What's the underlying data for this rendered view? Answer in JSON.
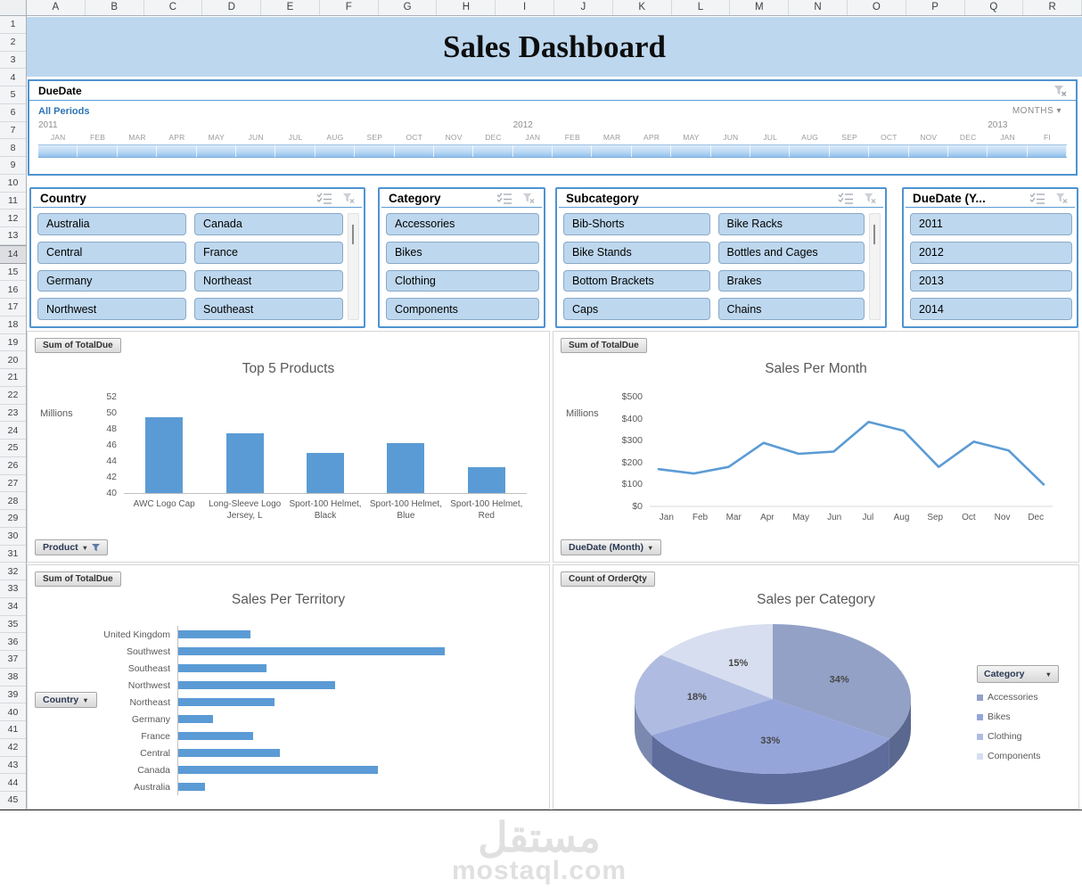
{
  "title": "Sales Dashboard",
  "spreadsheet": {
    "columns": [
      "A",
      "B",
      "C",
      "D",
      "E",
      "F",
      "G",
      "H",
      "I",
      "J",
      "K",
      "L",
      "M",
      "N",
      "O",
      "P",
      "Q",
      "R"
    ],
    "rows": [
      1,
      2,
      3,
      4,
      5,
      6,
      7,
      8,
      9,
      10,
      11,
      12,
      13,
      14,
      15,
      16,
      17,
      18,
      19,
      20,
      21,
      22,
      23,
      24,
      25,
      26,
      27,
      28,
      29,
      30,
      31,
      32,
      33,
      34,
      35,
      36,
      37,
      38,
      39,
      40,
      41,
      42,
      43,
      44,
      45
    ],
    "active_row": "14"
  },
  "icons": {
    "dropdown_small": "▾",
    "dropdown_filled": "▼"
  },
  "timeline": {
    "title": "DueDate",
    "selection_label": "All Periods",
    "period_button": "MONTHS",
    "years": [
      {
        "label": "2011",
        "month_index": 0
      },
      {
        "label": "2012",
        "month_index": 12
      },
      {
        "label": "2013",
        "month_index": 24
      }
    ],
    "months": [
      "JAN",
      "FEB",
      "MAR",
      "APR",
      "MAY",
      "JUN",
      "JUL",
      "AUG",
      "SEP",
      "OCT",
      "NOV",
      "DEC",
      "JAN",
      "FEB",
      "MAR",
      "APR",
      "MAY",
      "JUN",
      "JUL",
      "AUG",
      "SEP",
      "OCT",
      "NOV",
      "DEC",
      "JAN",
      "FI"
    ]
  },
  "slicers": [
    {
      "title": "Country",
      "columns": 2,
      "has_scrollbar": true,
      "items": [
        "Australia",
        "Canada",
        "Central",
        "France",
        "Germany",
        "Northeast",
        "Northwest",
        "Southeast"
      ]
    },
    {
      "title": "Category",
      "columns": 1,
      "has_scrollbar": false,
      "items": [
        "Accessories",
        "Bikes",
        "Clothing",
        "Components"
      ]
    },
    {
      "title": "Subcategory",
      "columns": 2,
      "has_scrollbar": true,
      "items": [
        "Bib-Shorts",
        "Bike Racks",
        "Bike Stands",
        "Bottles and Cages",
        "Bottom Brackets",
        "Brakes",
        "Caps",
        "Chains"
      ]
    },
    {
      "title": "DueDate (Y...",
      "columns": 1,
      "has_scrollbar": false,
      "items": [
        "2011",
        "2012",
        "2013",
        "2014"
      ]
    }
  ],
  "charts": {
    "top5": {
      "field_button": "Sum of TotalDue",
      "title": "Top 5 Products",
      "axis_label": "Millions",
      "filter_button": "Product"
    },
    "per_month": {
      "field_button": "Sum of TotalDue",
      "title": "Sales Per Month",
      "axis_label": "Millions",
      "filter_button": "DueDate (Month)"
    },
    "territory": {
      "field_button": "Sum of TotalDue",
      "title": "Sales Per Territory",
      "filter_button": "Country"
    },
    "per_category": {
      "field_button": "Count of OrderQty",
      "title": "Sales per Category",
      "legend_button": "Category"
    }
  },
  "chart_data": [
    {
      "id": "top5",
      "type": "bar",
      "title": "Top 5 Products",
      "categories": [
        "AWC Logo Cap",
        "Long-Sleeve Logo Jersey, L",
        "Sport-100 Helmet, Black",
        "Sport-100 Helmet, Blue",
        "Sport-100 Helmet, Red"
      ],
      "values": [
        49.5,
        47.5,
        45.0,
        46.2,
        43.2
      ],
      "ylabel": "Millions",
      "y_ticks": [
        52,
        50,
        48,
        46,
        44,
        42,
        40
      ],
      "ylim": [
        40,
        52
      ],
      "grid": false,
      "bar_color": "#5b9bd5"
    },
    {
      "id": "per_month",
      "type": "line",
      "title": "Sales Per Month",
      "x": [
        "Jan",
        "Feb",
        "Mar",
        "Apr",
        "May",
        "Jun",
        "Jul",
        "Aug",
        "Sep",
        "Oct",
        "Nov",
        "Dec"
      ],
      "values": [
        170,
        150,
        180,
        290,
        240,
        250,
        385,
        345,
        180,
        295,
        255,
        100
      ],
      "ylabel": "Millions",
      "y_ticks": [
        "$500",
        "$400",
        "$300",
        "$200",
        "$100",
        "$0"
      ],
      "ylim": [
        0,
        500
      ],
      "grid": false,
      "line_color": "#5b9bd5"
    },
    {
      "id": "territory",
      "type": "bar-horizontal",
      "title": "Sales Per Territory",
      "categories": [
        "United Kingdom",
        "Southwest",
        "Southeast",
        "Northwest",
        "Northeast",
        "Germany",
        "France",
        "Central",
        "Canada",
        "Australia"
      ],
      "values_relative": [
        0.27,
        1.0,
        0.33,
        0.59,
        0.36,
        0.13,
        0.28,
        0.38,
        0.75,
        0.1
      ],
      "note": "no value axis labels shown; values are relative to longest bar (Southwest)",
      "grid": false,
      "bar_color": "#5b9bd5"
    },
    {
      "id": "per_category",
      "type": "pie",
      "title": "Sales per Category",
      "labels": [
        "Accessories",
        "Bikes",
        "Clothing",
        "Components"
      ],
      "values_percent": [
        34,
        33,
        18,
        15
      ],
      "data_labels": [
        "34%",
        "33%",
        "18%",
        "15%"
      ],
      "legend_position": "right",
      "colors": [
        "#93a1c7",
        "#95a5da",
        "#afbbe0",
        "#d7def0"
      ],
      "side_colors": [
        "#5a688f",
        "#5d6c9b",
        "#7b89b0",
        "#a9b3cc"
      ]
    }
  ],
  "watermark": {
    "arabic": "مستقل",
    "domain": "mostaql.com"
  }
}
